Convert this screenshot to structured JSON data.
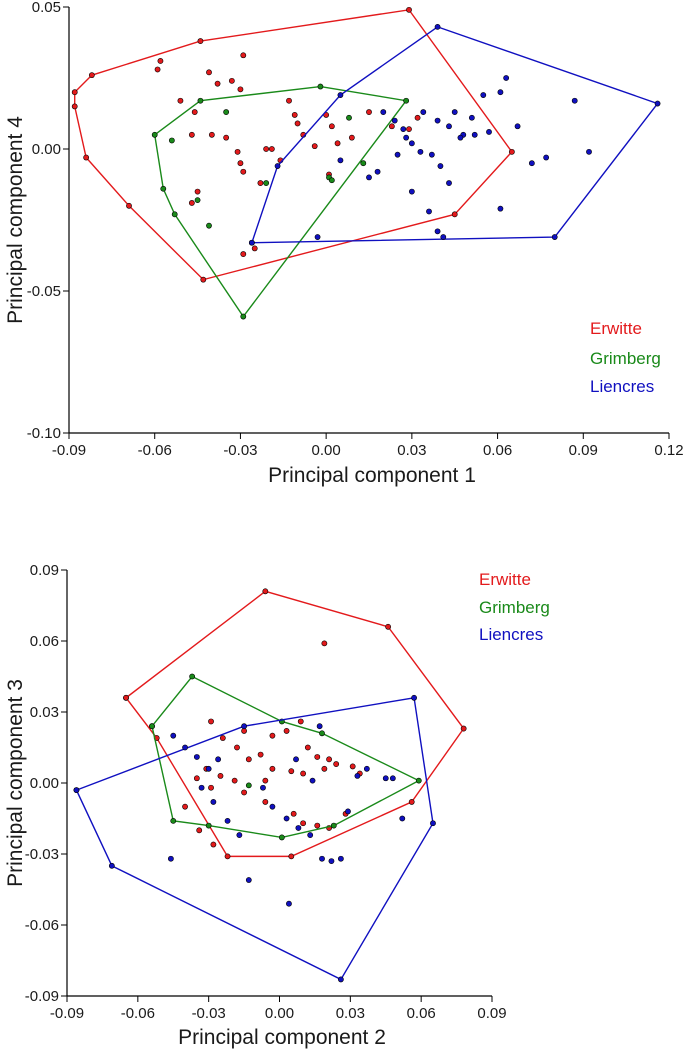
{
  "colors": {
    "Erwitte": "#e31a1c",
    "Grimberg": "#1a8a1a",
    "Liencres": "#1010c0"
  },
  "chart_data": [
    {
      "type": "scatter",
      "xlabel": "Principal component 1",
      "ylabel": "Principal component 4",
      "xlim": [
        -0.09,
        0.12
      ],
      "ylim": [
        -0.1,
        0.05
      ],
      "xticks": [
        "-0.09",
        "-0.06",
        "-0.03",
        "0.00",
        "0.03",
        "0.06",
        "0.09",
        "0.12"
      ],
      "yticks": [
        "0.05",
        "0.00",
        "-0.05",
        "-0.10"
      ],
      "legend_position": "right",
      "series": [
        {
          "name": "Erwitte",
          "hull": [
            [
              -0.088,
              0.02
            ],
            [
              -0.082,
              0.026
            ],
            [
              -0.044,
              0.038
            ],
            [
              0.029,
              0.049
            ],
            [
              0.065,
              -0.001
            ],
            [
              0.045,
              -0.023
            ],
            [
              -0.043,
              -0.046
            ],
            [
              -0.069,
              -0.02
            ],
            [
              -0.084,
              -0.003
            ],
            [
              -0.088,
              0.015
            ]
          ],
          "points": [
            [
              -0.058,
              0.031
            ],
            [
              -0.059,
              0.028
            ],
            [
              -0.051,
              0.017
            ],
            [
              -0.041,
              0.027
            ],
            [
              -0.038,
              0.023
            ],
            [
              -0.033,
              0.024
            ],
            [
              -0.03,
              0.021
            ],
            [
              -0.029,
              0.033
            ],
            [
              -0.046,
              0.013
            ],
            [
              -0.047,
              0.005
            ],
            [
              -0.04,
              0.005
            ],
            [
              -0.035,
              0.004
            ],
            [
              -0.031,
              -0.001
            ],
            [
              -0.03,
              -0.005
            ],
            [
              -0.029,
              -0.008
            ],
            [
              -0.021,
              0.0
            ],
            [
              -0.019,
              0.0
            ],
            [
              -0.016,
              -0.004
            ],
            [
              -0.013,
              0.017
            ],
            [
              -0.011,
              0.012
            ],
            [
              -0.01,
              0.009
            ],
            [
              -0.008,
              0.005
            ],
            [
              -0.004,
              0.001
            ],
            [
              0.0,
              0.012
            ],
            [
              0.002,
              0.008
            ],
            [
              0.004,
              0.002
            ],
            [
              0.009,
              0.004
            ],
            [
              0.015,
              0.013
            ],
            [
              0.023,
              0.008
            ],
            [
              0.029,
              0.007
            ],
            [
              0.032,
              0.011
            ],
            [
              -0.029,
              -0.037
            ],
            [
              -0.025,
              -0.035
            ],
            [
              -0.045,
              -0.015
            ],
            [
              -0.047,
              -0.019
            ],
            [
              -0.023,
              -0.012
            ],
            [
              0.001,
              -0.009
            ]
          ]
        },
        {
          "name": "Grimberg",
          "hull": [
            [
              -0.06,
              0.005
            ],
            [
              -0.044,
              0.017
            ],
            [
              -0.002,
              0.022
            ],
            [
              0.028,
              0.017
            ],
            [
              -0.029,
              -0.059
            ],
            [
              -0.053,
              -0.023
            ],
            [
              -0.057,
              -0.014
            ]
          ],
          "points": [
            [
              -0.054,
              0.003
            ],
            [
              -0.035,
              0.013
            ],
            [
              -0.021,
              -0.012
            ],
            [
              -0.045,
              -0.018
            ],
            [
              -0.041,
              -0.027
            ],
            [
              0.001,
              -0.01
            ],
            [
              0.002,
              -0.011
            ],
            [
              0.008,
              0.011
            ],
            [
              0.013,
              -0.005
            ]
          ]
        },
        {
          "name": "Liencres",
          "hull": [
            [
              -0.026,
              -0.033
            ],
            [
              -0.017,
              -0.006
            ],
            [
              0.005,
              0.019
            ],
            [
              0.039,
              0.043
            ],
            [
              0.116,
              0.016
            ],
            [
              0.08,
              -0.031
            ],
            [
              -0.026,
              -0.033
            ]
          ],
          "points": [
            [
              0.034,
              0.013
            ],
            [
              0.039,
              0.01
            ],
            [
              0.043,
              0.008
            ],
            [
              0.045,
              0.013
            ],
            [
              0.048,
              0.005
            ],
            [
              0.052,
              0.005
            ],
            [
              0.055,
              0.019
            ],
            [
              0.057,
              0.006
            ],
            [
              0.061,
              0.02
            ],
            [
              0.063,
              0.025
            ],
            [
              0.067,
              0.008
            ],
            [
              0.051,
              0.011
            ],
            [
              0.047,
              0.004
            ],
            [
              0.02,
              0.013
            ],
            [
              0.024,
              0.01
            ],
            [
              0.028,
              0.004
            ],
            [
              0.03,
              0.002
            ],
            [
              0.027,
              0.007
            ],
            [
              0.025,
              -0.002
            ],
            [
              0.033,
              -0.001
            ],
            [
              0.037,
              -0.002
            ],
            [
              0.04,
              -0.006
            ],
            [
              0.043,
              -0.012
            ],
            [
              0.018,
              -0.008
            ],
            [
              0.015,
              -0.01
            ],
            [
              0.03,
              -0.015
            ],
            [
              0.036,
              -0.022
            ],
            [
              0.039,
              -0.029
            ],
            [
              0.041,
              -0.031
            ],
            [
              0.061,
              -0.021
            ],
            [
              0.072,
              -0.005
            ],
            [
              0.077,
              -0.003
            ],
            [
              0.087,
              0.017
            ],
            [
              0.092,
              -0.001
            ],
            [
              -0.003,
              -0.031
            ],
            [
              0.005,
              -0.004
            ]
          ]
        }
      ]
    },
    {
      "type": "scatter",
      "xlabel": "Principal component 2",
      "ylabel": "Principal component 3",
      "xlim": [
        -0.09,
        0.09
      ],
      "ylim": [
        -0.09,
        0.09
      ],
      "xticks": [
        "-0.09",
        "-0.06",
        "-0.03",
        "0.00",
        "0.03",
        "0.06",
        "0.09"
      ],
      "yticks": [
        "0.09",
        "0.06",
        "0.03",
        "0.00",
        "-0.03",
        "-0.06",
        "-0.09"
      ],
      "legend_position": "top-right",
      "series": [
        {
          "name": "Erwitte",
          "hull": [
            [
              -0.065,
              0.036
            ],
            [
              -0.006,
              0.081
            ],
            [
              0.046,
              0.066
            ],
            [
              0.078,
              0.023
            ],
            [
              0.056,
              -0.008
            ],
            [
              0.005,
              -0.031
            ],
            [
              -0.022,
              -0.031
            ],
            [
              -0.052,
              0.019
            ],
            [
              -0.065,
              0.036
            ]
          ],
          "points": [
            [
              0.019,
              0.059
            ],
            [
              -0.029,
              0.026
            ],
            [
              -0.015,
              0.022
            ],
            [
              -0.024,
              0.019
            ],
            [
              -0.018,
              0.015
            ],
            [
              -0.013,
              0.01
            ],
            [
              -0.008,
              0.012
            ],
            [
              -0.003,
              0.02
            ],
            [
              0.003,
              0.022
            ],
            [
              0.009,
              0.026
            ],
            [
              0.012,
              0.015
            ],
            [
              0.016,
              0.011
            ],
            [
              0.021,
              0.01
            ],
            [
              0.024,
              0.008
            ],
            [
              -0.031,
              0.006
            ],
            [
              -0.025,
              0.003
            ],
            [
              -0.019,
              0.001
            ],
            [
              -0.006,
              0.001
            ],
            [
              -0.003,
              0.006
            ],
            [
              0.005,
              0.005
            ],
            [
              0.01,
              0.004
            ],
            [
              0.019,
              0.006
            ],
            [
              0.031,
              0.007
            ],
            [
              0.034,
              0.004
            ],
            [
              -0.035,
              0.002
            ],
            [
              -0.029,
              -0.002
            ],
            [
              -0.015,
              -0.004
            ],
            [
              -0.006,
              -0.008
            ],
            [
              0.006,
              -0.013
            ],
            [
              0.01,
              -0.017
            ],
            [
              0.016,
              -0.018
            ],
            [
              0.021,
              -0.019
            ],
            [
              -0.034,
              -0.02
            ],
            [
              -0.028,
              -0.026
            ],
            [
              -0.04,
              -0.01
            ],
            [
              0.028,
              -0.013
            ]
          ]
        },
        {
          "name": "Grimberg",
          "hull": [
            [
              -0.054,
              0.024
            ],
            [
              -0.037,
              0.045
            ],
            [
              0.001,
              0.026
            ],
            [
              0.018,
              0.021
            ],
            [
              0.059,
              0.001
            ],
            [
              0.023,
              -0.018
            ],
            [
              0.001,
              -0.023
            ],
            [
              -0.03,
              -0.018
            ],
            [
              -0.045,
              -0.016
            ],
            [
              -0.054,
              0.024
            ]
          ],
          "points": [
            [
              -0.013,
              -0.001
            ]
          ]
        },
        {
          "name": "Liencres",
          "hull": [
            [
              -0.086,
              -0.003
            ],
            [
              -0.015,
              0.024
            ],
            [
              0.057,
              0.036
            ],
            [
              0.065,
              -0.017
            ],
            [
              0.026,
              -0.083
            ],
            [
              -0.071,
              -0.035
            ],
            [
              -0.086,
              -0.003
            ]
          ],
          "points": [
            [
              -0.045,
              0.02
            ],
            [
              -0.04,
              0.015
            ],
            [
              -0.035,
              0.011
            ],
            [
              -0.03,
              0.006
            ],
            [
              -0.026,
              0.01
            ],
            [
              -0.033,
              -0.002
            ],
            [
              -0.028,
              -0.008
            ],
            [
              -0.022,
              -0.016
            ],
            [
              -0.017,
              -0.022
            ],
            [
              -0.013,
              -0.041
            ],
            [
              -0.003,
              -0.01
            ],
            [
              0.003,
              -0.015
            ],
            [
              0.008,
              -0.019
            ],
            [
              0.013,
              -0.022
            ],
            [
              0.018,
              -0.032
            ],
            [
              0.022,
              -0.033
            ],
            [
              0.026,
              -0.032
            ],
            [
              0.029,
              -0.012
            ],
            [
              0.033,
              0.003
            ],
            [
              0.037,
              0.006
            ],
            [
              0.045,
              0.002
            ],
            [
              0.048,
              0.002
            ],
            [
              0.052,
              -0.015
            ],
            [
              0.004,
              -0.051
            ],
            [
              -0.046,
              -0.032
            ],
            [
              0.007,
              0.01
            ],
            [
              0.014,
              0.001
            ],
            [
              -0.007,
              -0.002
            ],
            [
              0.017,
              0.024
            ]
          ]
        }
      ]
    }
  ]
}
